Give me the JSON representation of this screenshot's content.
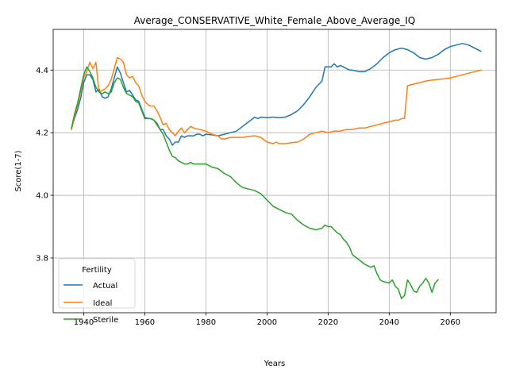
{
  "chart_data": {
    "type": "line",
    "title": "Average_CONSERVATIVE_White_Female_Above_Average_IQ",
    "xlabel": "Years",
    "ylabel": "Score(1-7)",
    "xlim": [
      1930,
      2075
    ],
    "ylim": [
      3.625,
      4.53
    ],
    "xticks": [
      1940,
      1960,
      1980,
      2000,
      2020,
      2040,
      2060
    ],
    "yticks": [
      3.8,
      4.0,
      4.2,
      4.4
    ],
    "grid": true,
    "legend": {
      "title": "Fertility",
      "placement": "lower-left"
    },
    "series": [
      {
        "name": "Actual",
        "color": "#1f77b4",
        "x": [
          1936,
          1937,
          1938,
          1939,
          1940,
          1941,
          1942,
          1943,
          1944,
          1945,
          1946,
          1947,
          1948,
          1949,
          1950,
          1951,
          1952,
          1953,
          1954,
          1955,
          1956,
          1957,
          1958,
          1959,
          1960,
          1961,
          1962,
          1963,
          1964,
          1965,
          1966,
          1967,
          1968,
          1969,
          1970,
          1971,
          1972,
          1973,
          1974,
          1975,
          1976,
          1977,
          1978,
          1979,
          1980,
          1982,
          1984,
          1986,
          1988,
          1990,
          1992,
          1994,
          1996,
          1997,
          1998,
          2000,
          2002,
          2004,
          2006,
          2008,
          2010,
          2012,
          2014,
          2016,
          2018,
          2019,
          2020,
          2021,
          2022,
          2023,
          2024,
          2025,
          2026,
          2027,
          2028,
          2030,
          2032,
          2034,
          2036,
          2038,
          2040,
          2042,
          2044,
          2045,
          2046,
          2048,
          2050,
          2052,
          2054,
          2056,
          2058,
          2060,
          2062,
          2064,
          2066,
          2068,
          2070
        ],
        "values": [
          4.215,
          4.245,
          4.275,
          4.31,
          4.36,
          4.385,
          4.385,
          4.37,
          4.33,
          4.34,
          4.315,
          4.31,
          4.315,
          4.34,
          4.375,
          4.41,
          4.39,
          4.36,
          4.33,
          4.335,
          4.32,
          4.305,
          4.3,
          4.275,
          4.25,
          4.245,
          4.245,
          4.24,
          4.23,
          4.21,
          4.21,
          4.19,
          4.18,
          4.16,
          4.17,
          4.17,
          4.19,
          4.185,
          4.19,
          4.19,
          4.19,
          4.195,
          4.195,
          4.19,
          4.195,
          4.193,
          4.19,
          4.195,
          4.2,
          4.205,
          4.22,
          4.235,
          4.25,
          4.245,
          4.25,
          4.248,
          4.25,
          4.248,
          4.25,
          4.258,
          4.27,
          4.29,
          4.315,
          4.345,
          4.365,
          4.41,
          4.41,
          4.41,
          4.42,
          4.41,
          4.415,
          4.41,
          4.405,
          4.4,
          4.4,
          4.395,
          4.395,
          4.405,
          4.42,
          4.44,
          4.455,
          4.465,
          4.47,
          4.468,
          4.465,
          4.455,
          4.44,
          4.435,
          4.44,
          4.45,
          4.465,
          4.475,
          4.48,
          4.485,
          4.48,
          4.47,
          4.46
        ]
      },
      {
        "name": "Ideal",
        "color": "#ff7f0e",
        "x": [
          1936,
          1937,
          1938,
          1939,
          1940,
          1941,
          1942,
          1943,
          1944,
          1945,
          1946,
          1947,
          1948,
          1949,
          1950,
          1951,
          1952,
          1953,
          1954,
          1955,
          1956,
          1957,
          1958,
          1959,
          1960,
          1961,
          1962,
          1963,
          1964,
          1965,
          1966,
          1967,
          1968,
          1969,
          1970,
          1971,
          1972,
          1973,
          1974,
          1975,
          1976,
          1978,
          1980,
          1982,
          1984,
          1985,
          1986,
          1988,
          1990,
          1992,
          1994,
          1996,
          1998,
          2000,
          2002,
          2003,
          2004,
          2006,
          2008,
          2010,
          2012,
          2014,
          2016,
          2018,
          2020,
          2022,
          2024,
          2026,
          2028,
          2030,
          2032,
          2034,
          2036,
          2038,
          2040,
          2042,
          2043,
          2044,
          2045,
          2046,
          2048,
          2050,
          2052,
          2054,
          2056,
          2058,
          2060,
          2062,
          2064,
          2066,
          2068,
          2070
        ],
        "values": [
          4.21,
          4.25,
          4.29,
          4.33,
          4.375,
          4.395,
          4.425,
          4.405,
          4.425,
          4.33,
          4.335,
          4.34,
          4.35,
          4.37,
          4.405,
          4.44,
          4.435,
          4.425,
          4.385,
          4.375,
          4.38,
          4.36,
          4.35,
          4.32,
          4.3,
          4.29,
          4.285,
          4.285,
          4.27,
          4.25,
          4.225,
          4.23,
          4.21,
          4.2,
          4.19,
          4.205,
          4.215,
          4.2,
          4.21,
          4.22,
          4.215,
          4.21,
          4.205,
          4.195,
          4.19,
          4.18,
          4.18,
          4.185,
          4.185,
          4.185,
          4.188,
          4.19,
          4.185,
          4.17,
          4.165,
          4.17,
          4.165,
          4.165,
          4.168,
          4.17,
          4.18,
          4.195,
          4.2,
          4.205,
          4.2,
          4.205,
          4.205,
          4.21,
          4.21,
          4.215,
          4.215,
          4.22,
          4.225,
          4.23,
          4.235,
          4.24,
          4.24,
          4.245,
          4.245,
          4.35,
          4.355,
          4.36,
          4.365,
          4.368,
          4.37,
          4.372,
          4.375,
          4.38,
          4.385,
          4.39,
          4.395,
          4.4
        ]
      },
      {
        "name": "Sterile",
        "color": "#2ca02c",
        "x": [
          1936,
          1937,
          1938,
          1939,
          1940,
          1941,
          1942,
          1943,
          1944,
          1945,
          1946,
          1947,
          1948,
          1949,
          1950,
          1951,
          1952,
          1953,
          1954,
          1955,
          1956,
          1957,
          1958,
          1959,
          1960,
          1961,
          1962,
          1963,
          1964,
          1965,
          1966,
          1967,
          1968,
          1969,
          1970,
          1971,
          1972,
          1973,
          1974,
          1975,
          1976,
          1977,
          1978,
          1979,
          1980,
          1982,
          1984,
          1986,
          1988,
          1990,
          1992,
          1994,
          1996,
          1998,
          2000,
          2002,
          2004,
          2006,
          2008,
          2010,
          2012,
          2014,
          2016,
          2018,
          2019,
          2020,
          2021,
          2022,
          2023,
          2024,
          2025,
          2026,
          2027,
          2028,
          2030,
          2032,
          2034,
          2035,
          2036,
          2037,
          2038,
          2040,
          2041,
          2042,
          2043,
          2044,
          2045,
          2046,
          2047,
          2048,
          2049,
          2050,
          2051,
          2052,
          2053,
          2054,
          2055,
          2056
        ],
        "values": [
          4.215,
          4.26,
          4.295,
          4.34,
          4.385,
          4.41,
          4.395,
          4.375,
          4.345,
          4.33,
          4.325,
          4.33,
          4.325,
          4.33,
          4.36,
          4.375,
          4.37,
          4.345,
          4.325,
          4.32,
          4.315,
          4.3,
          4.295,
          4.27,
          4.245,
          4.245,
          4.245,
          4.24,
          4.225,
          4.21,
          4.195,
          4.17,
          4.145,
          4.125,
          4.12,
          4.11,
          4.105,
          4.1,
          4.1,
          4.105,
          4.1,
          4.1,
          4.1,
          4.1,
          4.1,
          4.09,
          4.085,
          4.07,
          4.06,
          4.04,
          4.025,
          4.02,
          4.015,
          4.005,
          3.985,
          3.965,
          3.955,
          3.945,
          3.94,
          3.92,
          3.905,
          3.895,
          3.89,
          3.895,
          3.905,
          3.9,
          3.9,
          3.89,
          3.88,
          3.875,
          3.86,
          3.85,
          3.835,
          3.81,
          3.795,
          3.78,
          3.77,
          3.775,
          3.75,
          3.73,
          3.725,
          3.72,
          3.73,
          3.71,
          3.7,
          3.67,
          3.68,
          3.73,
          3.715,
          3.695,
          3.69,
          3.71,
          3.72,
          3.735,
          3.72,
          3.69,
          3.72,
          3.73
        ]
      }
    ]
  }
}
